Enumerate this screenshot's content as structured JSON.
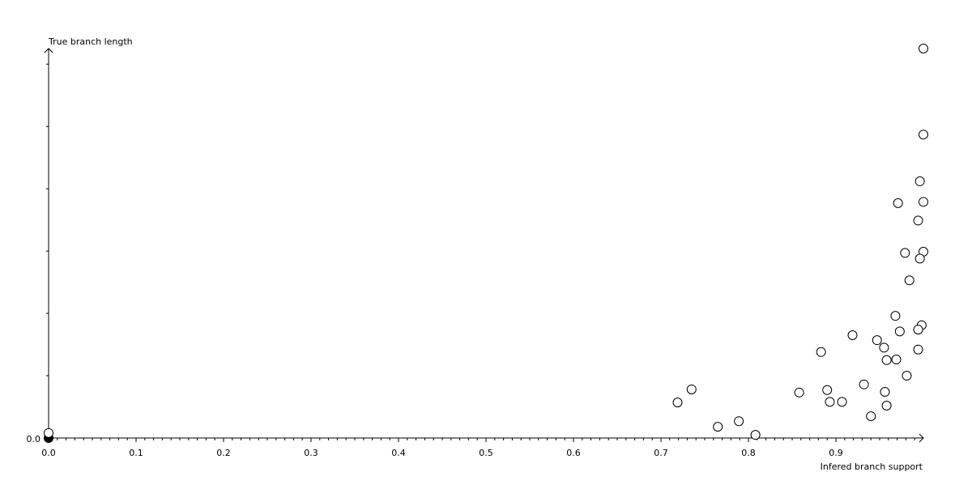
{
  "chart_data": {
    "type": "scatter",
    "title": "",
    "xlabel": "Infered branch support",
    "ylabel": "True branch length",
    "xlim": [
      0,
      1.0
    ],
    "ylim": [
      0,
      6.25
    ],
    "x_ticks": [
      "0.0",
      "0.1",
      "0.2",
      "0.3",
      "0.4",
      "0.5",
      "0.6",
      "0.7",
      "0.8",
      "0.9"
    ],
    "x_tick_values": [
      0,
      0.1,
      0.2,
      0.3,
      0.4,
      0.5,
      0.6,
      0.7,
      0.8,
      0.9
    ],
    "y_tick_label": "0.0",
    "y_major_ticks": [
      1,
      2,
      3,
      4,
      5,
      6
    ],
    "grid": false,
    "marker": "open-circle",
    "colors": {
      "axis": "#000000",
      "marker_fill": "#ffffff",
      "marker_stroke": "#000000",
      "filled_marker": "#000000"
    },
    "points": [
      [
        1.0,
        6.25
      ],
      [
        1.0,
        4.87
      ],
      [
        0.996,
        4.12
      ],
      [
        1.0,
        3.79
      ],
      [
        0.971,
        3.77
      ],
      [
        0.994,
        3.49
      ],
      [
        1.0,
        2.99
      ],
      [
        0.979,
        2.97
      ],
      [
        0.996,
        2.88
      ],
      [
        0.984,
        2.53
      ],
      [
        0.968,
        1.96
      ],
      [
        0.998,
        1.81
      ],
      [
        0.994,
        1.74
      ],
      [
        0.973,
        1.71
      ],
      [
        0.919,
        1.65
      ],
      [
        0.947,
        1.57
      ],
      [
        0.955,
        1.45
      ],
      [
        0.883,
        1.38
      ],
      [
        0.994,
        1.42
      ],
      [
        0.958,
        1.25
      ],
      [
        0.969,
        1.26
      ],
      [
        0.981,
        1.0
      ],
      [
        0.932,
        0.86
      ],
      [
        0.735,
        0.78
      ],
      [
        0.89,
        0.77
      ],
      [
        0.956,
        0.74
      ],
      [
        0.858,
        0.73
      ],
      [
        0.719,
        0.57
      ],
      [
        0.893,
        0.58
      ],
      [
        0.907,
        0.58
      ],
      [
        0.958,
        0.52
      ],
      [
        0.94,
        0.35
      ],
      [
        0.789,
        0.27
      ],
      [
        0.765,
        0.18
      ],
      [
        0.808,
        0.05
      ],
      [
        0,
        0.08
      ]
    ],
    "filled_points": [
      [
        0,
        0
      ]
    ]
  }
}
